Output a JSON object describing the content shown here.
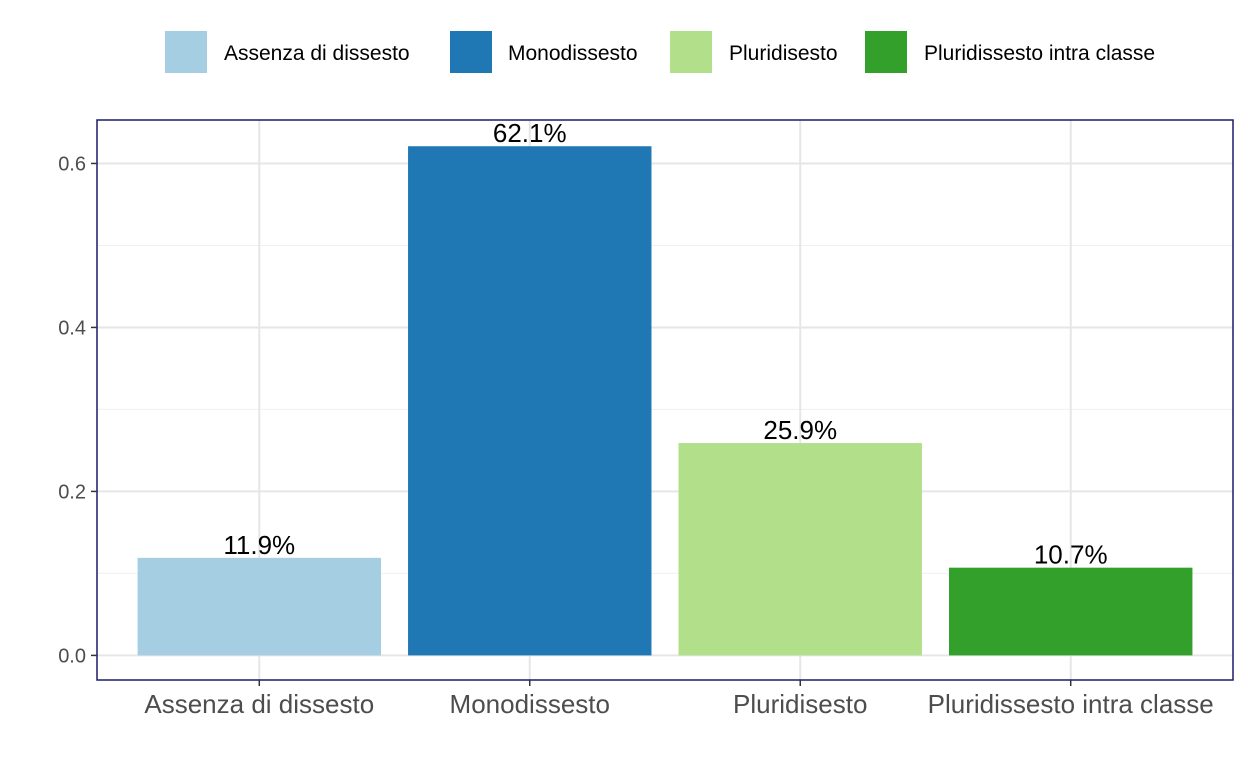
{
  "chart_data": {
    "type": "bar",
    "categories": [
      "Assenza di dissesto",
      "Monodissesto",
      "Pluridisesto",
      "Pluridissesto intra classe"
    ],
    "values": [
      0.119,
      0.621,
      0.259,
      0.107
    ],
    "data_labels": [
      "11.9%",
      "62.1%",
      "25.9%",
      "10.7%"
    ],
    "legend": [
      "Assenza di dissesto",
      "Monodissesto",
      "Pluridisesto",
      "Pluridissesto intra classe"
    ],
    "colors": [
      "#a6cee3",
      "#1f78b4",
      "#b2df8a",
      "#33a02c"
    ],
    "y_ticks": [
      "0.0",
      "0.2",
      "0.4",
      "0.6"
    ],
    "y_tick_values": [
      0,
      0.2,
      0.4,
      0.6
    ],
    "ylim": [
      -0.03,
      0.653
    ],
    "title": "",
    "xlabel": "",
    "ylabel": "",
    "grid": true,
    "legend_position": "top"
  }
}
